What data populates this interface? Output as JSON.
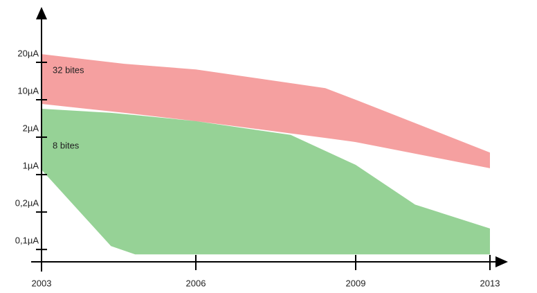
{
  "chart_data": {
    "type": "range-area",
    "series": [
      {
        "name": "8 bites",
        "color": "#96d296",
        "x": [
          2003,
          2004.35,
          2004.82,
          2006,
          2007.78,
          2009,
          2010.77,
          2013
        ],
        "high": [
          4.76,
          4.65,
          4.59,
          4.43,
          4.06,
          3.26,
          2.2,
          1.56
        ],
        "low": [
          3.13,
          1.09,
          0.87,
          0.87,
          0.87,
          0.87,
          0.87,
          0.87
        ]
      },
      {
        "name": "32 bites",
        "color": "#f5a0a0",
        "x": [
          2003,
          2004.61,
          2006,
          2008.43,
          2009,
          2013
        ],
        "high": [
          6.22,
          5.96,
          5.81,
          5.31,
          5.0,
          3.59
        ],
        "low": [
          4.89,
          4.65,
          4.43,
          3.98,
          3.87,
          3.17
        ]
      }
    ],
    "xticks": [
      2003,
      2006,
      2009,
      2013
    ],
    "ylim": [
      0.67,
      7.48
    ],
    "yticks": [
      {
        "value": 1,
        "label": "0,1µA"
      },
      {
        "value": 2,
        "label": "0,2µA"
      },
      {
        "value": 3,
        "label": "1µA"
      },
      {
        "value": 4,
        "label": "2µA"
      },
      {
        "value": 5,
        "label": "10µA"
      },
      {
        "value": 6,
        "label": "20µA"
      }
    ]
  }
}
